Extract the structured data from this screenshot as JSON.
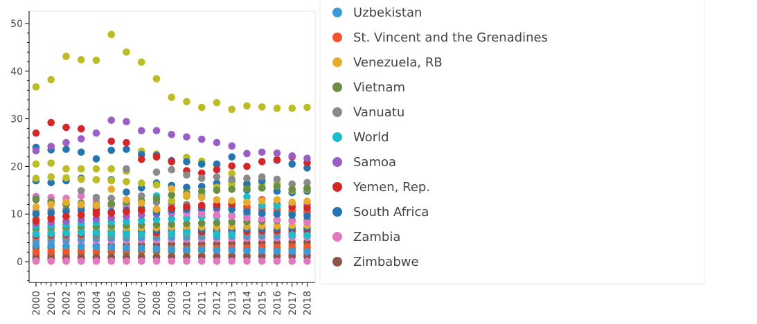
{
  "chart_data": {
    "type": "scatter",
    "x": [
      2000,
      2001,
      2002,
      2003,
      2004,
      2005,
      2006,
      2007,
      2008,
      2009,
      2010,
      2011,
      2012,
      2013,
      2014,
      2015,
      2016,
      2017,
      2018
    ],
    "xticks": [
      "2000",
      "2001",
      "2002",
      "2003",
      "2004",
      "2005",
      "2006",
      "2007",
      "2008",
      "2009",
      "2010",
      "2011",
      "2012",
      "2013",
      "2014",
      "2015",
      "2016",
      "2017",
      "2018"
    ],
    "yticks": [
      "0",
      "10",
      "20",
      "30",
      "40",
      "50"
    ],
    "ylim": [
      -4.5,
      52
    ],
    "grid": false,
    "legend_position": "right",
    "series": [
      {
        "name": "Uzbekistan",
        "color": "#3a9bd9",
        "values": [
          3.5,
          3.4,
          3.3,
          3.2,
          3.1,
          3.0,
          2.9,
          2.8,
          2.7,
          2.6,
          2.5,
          2.5,
          2.4,
          2.4,
          2.3,
          2.3,
          2.2,
          2.2,
          2.1
        ]
      },
      {
        "name": "St. Vincent and the Grenadines",
        "color": "#f5532e",
        "values": [
          2.0,
          2.1,
          2.2,
          2.3,
          2.3,
          2.4,
          2.5,
          2.6,
          2.6,
          2.7,
          2.7,
          2.8,
          2.8,
          2.9,
          2.9,
          3.0,
          3.0,
          3.1,
          3.1
        ]
      },
      {
        "name": "Venezuela, RB",
        "color": "#e6ac2e",
        "values": [
          11.5,
          12.0,
          12.5,
          12.0,
          11.8,
          15.2,
          13.0,
          12.3,
          11.0,
          15.3,
          14.0,
          13.5,
          13.0,
          12.8,
          12.5,
          12.8,
          13.0,
          12.5,
          12.7
        ]
      },
      {
        "name": "Vietnam",
        "color": "#6b8e46",
        "values": [
          13.0,
          12.5,
          12.0,
          12.3,
          12.0,
          12.2,
          12.5,
          12.8,
          13.2,
          14.0,
          14.5,
          14.8,
          15.0,
          15.2,
          15.3,
          15.5,
          15.8,
          15.2,
          15.4
        ]
      },
      {
        "name": "Vanuatu",
        "color": "#8a8a8a",
        "values": [
          13.3,
          12.7,
          12.3,
          14.9,
          13.5,
          13.3,
          19.5,
          13.8,
          18.8,
          19.3,
          18.2,
          17.5,
          17.8,
          17.3,
          17.5,
          17.8,
          17.3,
          16.3,
          16.6
        ]
      },
      {
        "name": "World",
        "color": "#1cbcc9",
        "values": [
          5.8,
          5.9,
          6.0,
          6.1,
          6.0,
          5.9,
          5.8,
          5.7,
          13.8,
          5.9,
          6.1,
          13.8,
          5.8,
          5.7,
          13.6,
          11.8,
          11.7,
          5.6,
          5.5
        ]
      },
      {
        "name": "Samoa",
        "color": "#9a5fc7",
        "values": [
          23.3,
          24.2,
          25.0,
          25.8,
          27.0,
          29.7,
          29.4,
          27.5,
          27.5,
          26.7,
          26.2,
          25.7,
          25.0,
          24.3,
          22.7,
          23.0,
          22.8,
          22.2,
          21.7
        ]
      },
      {
        "name": "Yemen, Rep.",
        "color": "#d62728",
        "values": [
          27.0,
          29.2,
          28.2,
          27.9,
          10.5,
          25.3,
          25.0,
          21.5,
          22.0,
          21.0,
          19.1,
          18.6,
          19.3,
          20.1,
          20.0,
          21.0,
          21.4,
          22.0,
          20.8
        ]
      },
      {
        "name": "South Africa",
        "color": "#2575b0",
        "values": [
          24.0,
          23.5,
          23.6,
          23.0,
          21.6,
          23.4,
          23.6,
          22.5,
          22.3,
          21.2,
          21.0,
          20.5,
          20.5,
          22.0,
          16.4,
          17.0,
          21.3,
          20.5,
          19.7
        ]
      },
      {
        "name": "Zambia",
        "color": "#e377c2",
        "values": [
          0.1,
          0.1,
          0.1,
          0.1,
          0.1,
          0.1,
          0.1,
          0.1,
          0.1,
          0.1,
          0.1,
          0.1,
          0.1,
          0.1,
          0.1,
          0.1,
          0.1,
          0.1,
          0.1
        ]
      },
      {
        "name": "Zimbabwe",
        "color": "#8c564b",
        "values": [
          1.0,
          1.0,
          1.0,
          1.0,
          1.0,
          1.0,
          1.0,
          1.0,
          1.0,
          1.0,
          1.0,
          1.0,
          1.0,
          1.0,
          1.0,
          1.0,
          1.0,
          1.0,
          1.0
        ]
      },
      {
        "color": "#bcbd22",
        "values": [
          36.7,
          38.2,
          43.1,
          42.4,
          42.3,
          47.7,
          44.0,
          41.9,
          38.4,
          34.5,
          33.6,
          32.4,
          33.4,
          32.0,
          32.7,
          32.5,
          32.2,
          32.2,
          32.4
        ]
      },
      {
        "color": "#bcbd22",
        "values": [
          20.5,
          20.7,
          19.5,
          19.5,
          19.5,
          19.5,
          19.0,
          23.2,
          22.6,
          21.0,
          21.9,
          21.1,
          20.3,
          18.5,
          16.0,
          15.5,
          15.8,
          15.1,
          15.5
        ]
      },
      {
        "color": "#bcbd22",
        "values": [
          17.5,
          17.8,
          17.6,
          17.3,
          17.2,
          17.0,
          16.8,
          16.5,
          16.1,
          12.8,
          13.7,
          14.6,
          15.6,
          16.2,
          16.1,
          16.4,
          16.5,
          15.0,
          15.2
        ]
      },
      {
        "color": "#d62728",
        "values": [
          8.5,
          9.0,
          9.5,
          9.8,
          10.0,
          10.2,
          10.5,
          10.8,
          11.0,
          11.2,
          11.5,
          11.8,
          12.0,
          12.2,
          12.5,
          13.0,
          12.0,
          11.5,
          11.3
        ]
      },
      {
        "color": "#2575b0",
        "values": [
          17.0,
          16.6,
          17.0,
          17.5,
          17.2,
          17.2,
          14.6,
          15.5,
          16.5,
          16.0,
          15.6,
          15.8,
          16.5,
          17.0,
          15.0,
          15.5,
          14.8,
          14.5,
          14.8
        ]
      },
      {
        "color": "#2575b0",
        "values": [
          10.0,
          10.2,
          10.5,
          10.8,
          11.0,
          10.5,
          10.8,
          11.2,
          10.5,
          10.8,
          11.0,
          11.3,
          11.5,
          11.0,
          10.5,
          10.2,
          10.0,
          9.8,
          9.6
        ]
      },
      {
        "color": "#e377c2",
        "values": [
          13.7,
          13.5,
          13.3,
          13.8,
          12.8,
          12.0,
          11.5,
          11.0,
          10.8,
          10.5,
          10.2,
          10.0,
          9.8,
          9.5,
          9.2,
          9.0,
          8.8,
          8.5,
          8.3
        ]
      },
      {
        "color": "#f5532e",
        "values": [
          9.0,
          9.3,
          9.5,
          9.8,
          10.0,
          10.3,
          10.5,
          10.8,
          11.0,
          11.2,
          11.5,
          11.8,
          12.0,
          11.8,
          11.5,
          11.2,
          11.0,
          10.8,
          10.5
        ]
      },
      {
        "color": "#9a5fc7",
        "values": [
          8.0,
          8.2,
          8.5,
          8.8,
          9.0,
          9.2,
          9.5,
          9.8,
          10.0,
          10.2,
          10.5,
          10.8,
          11.0,
          11.2,
          11.5,
          11.8,
          12.0,
          12.2,
          12.0
        ]
      },
      {
        "color": "#1cbcc9",
        "values": [
          7.5,
          7.6,
          7.8,
          8.0,
          8.2,
          8.4,
          8.5,
          8.7,
          8.9,
          9.0,
          9.2,
          9.4,
          9.5,
          9.7,
          9.9,
          10.0,
          10.2,
          10.4,
          10.5
        ]
      },
      {
        "color": "#6b8e46",
        "values": [
          7.0,
          7.1,
          7.2,
          7.3,
          7.4,
          7.5,
          7.6,
          7.7,
          7.8,
          7.9,
          8.0,
          8.1,
          8.2,
          8.3,
          8.4,
          8.5,
          8.6,
          8.7,
          8.8
        ]
      },
      {
        "color": "#e6ac2e",
        "values": [
          6.5,
          6.6,
          6.7,
          6.8,
          6.9,
          7.0,
          7.0,
          7.1,
          7.1,
          7.2,
          7.2,
          7.3,
          7.3,
          7.4,
          7.4,
          7.5,
          7.5,
          7.6,
          7.6
        ]
      },
      {
        "color": "#2575b0",
        "values": [
          6.0,
          6.1,
          6.2,
          6.3,
          6.4,
          6.5,
          6.5,
          6.6,
          6.6,
          6.7,
          6.7,
          6.8,
          6.8,
          6.9,
          6.9,
          7.0,
          7.0,
          7.1,
          7.1
        ]
      },
      {
        "color": "#d62728",
        "values": [
          5.5,
          5.6,
          5.7,
          5.8,
          5.9,
          6.0,
          6.0,
          6.1,
          6.1,
          6.2,
          6.2,
          6.3,
          6.3,
          6.4,
          6.4,
          6.5,
          6.5,
          6.6,
          6.6
        ]
      },
      {
        "color": "#8a8a8a",
        "values": [
          5.0,
          5.1,
          5.2,
          5.3,
          5.4,
          5.5,
          5.5,
          5.6,
          5.6,
          5.7,
          5.7,
          5.8,
          5.8,
          5.9,
          5.9,
          6.0,
          6.0,
          6.1,
          6.1
        ]
      },
      {
        "color": "#3a9bd9",
        "values": [
          4.5,
          4.6,
          4.7,
          4.8,
          4.9,
          5.0,
          5.0,
          5.1,
          5.1,
          5.2,
          5.2,
          5.3,
          5.3,
          5.4,
          5.4,
          5.5,
          5.5,
          5.6,
          5.6
        ]
      },
      {
        "color": "#e377c2",
        "values": [
          4.0,
          4.1,
          4.2,
          4.3,
          4.4,
          4.5,
          4.5,
          4.6,
          4.6,
          4.7,
          4.7,
          4.8,
          4.8,
          4.9,
          4.9,
          5.0,
          5.0,
          5.1,
          5.1
        ]
      },
      {
        "color": "#8c564b",
        "values": [
          3.0,
          3.1,
          3.2,
          3.3,
          3.4,
          3.5,
          3.5,
          3.6,
          3.6,
          3.7,
          3.7,
          3.8,
          3.8,
          3.9,
          3.9,
          4.0,
          4.0,
          4.1,
          4.1
        ]
      },
      {
        "color": "#bcbd22",
        "values": [
          2.5,
          2.6,
          2.7,
          2.8,
          2.9,
          3.0,
          3.0,
          3.1,
          3.1,
          3.2,
          3.2,
          3.3,
          3.3,
          3.4,
          3.4,
          3.5,
          3.5,
          3.6,
          3.6
        ]
      },
      {
        "color": "#6b8e46",
        "values": [
          1.5,
          1.6,
          1.7,
          1.8,
          1.9,
          2.0,
          2.0,
          2.1,
          2.1,
          2.2,
          2.2,
          2.3,
          2.3,
          2.4,
          2.4,
          2.5,
          2.5,
          2.6,
          2.6
        ]
      },
      {
        "color": "#f5532e",
        "values": [
          0.5,
          0.6,
          0.7,
          0.8,
          0.9,
          1.0,
          1.0,
          1.1,
          1.1,
          1.2,
          1.2,
          1.3,
          1.3,
          1.4,
          1.4,
          1.5,
          1.5,
          1.6,
          1.6
        ]
      },
      {
        "color": "#9a5fc7",
        "values": [
          0.3,
          0.4,
          0.5,
          0.6,
          0.7,
          0.8,
          0.8,
          0.9,
          0.9,
          1.0,
          1.0,
          1.1,
          1.1,
          1.2,
          1.2,
          1.3,
          1.3,
          1.4,
          1.4
        ]
      },
      {
        "color": "#8a8a8a",
        "values": [
          10.5,
          10.8,
          11.0,
          11.3,
          11.5,
          11.8,
          12.0,
          12.3,
          12.5,
          12.2,
          12.0,
          11.8,
          11.5,
          11.3,
          11.0,
          10.8,
          10.5,
          10.3,
          10.0
        ]
      }
    ]
  }
}
